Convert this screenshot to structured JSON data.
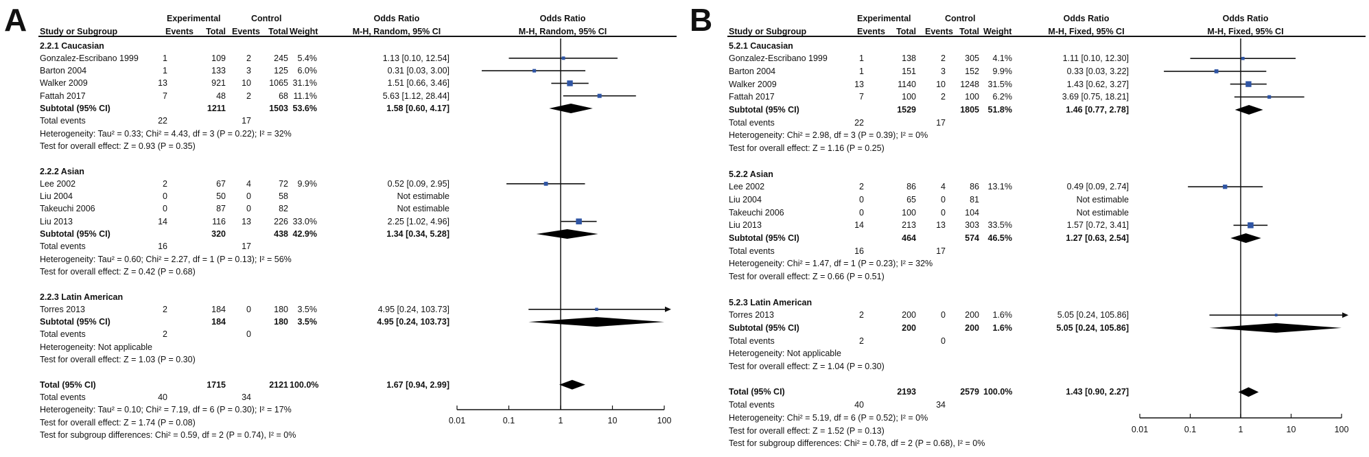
{
  "chart_data": [
    {
      "type": "forest",
      "panel_label": "A",
      "headers": {
        "group_experimental": "Experimental",
        "group_control": "Control",
        "study": "Study or Subgroup",
        "events": "Events",
        "total": "Total",
        "weight": "Weight",
        "or_title": "Odds Ratio",
        "or_method": "M-H, Random, 95% CI",
        "plot_title": "Odds Ratio",
        "plot_method": "M-H, Random, 95% CI"
      },
      "axis": {
        "scale": "log",
        "min": 0.01,
        "max": 100,
        "ticks": [
          "0.01",
          "0.1",
          "1",
          "10",
          "100"
        ],
        "null_line": 1
      },
      "rows": [
        {
          "kind": "subhead",
          "label": "2.2.1 Caucasian"
        },
        {
          "kind": "study",
          "label": "Gonzalez-Escribano 1999",
          "ee": "1",
          "et": "109",
          "ce": "2",
          "ct": "245",
          "w": "5.4%",
          "ci": "1.13 [0.10, 12.54]",
          "or": 1.13,
          "lo": 0.1,
          "hi": 12.54,
          "wt": 5.4
        },
        {
          "kind": "study",
          "label": "Barton 2004",
          "ee": "1",
          "et": "133",
          "ce": "3",
          "ct": "125",
          "w": "6.0%",
          "ci": "0.31 [0.03, 3.00]",
          "or": 0.31,
          "lo": 0.03,
          "hi": 3.0,
          "wt": 6.0
        },
        {
          "kind": "study",
          "label": "Walker 2009",
          "ee": "13",
          "et": "921",
          "ce": "10",
          "ct": "1065",
          "w": "31.1%",
          "ci": "1.51 [0.66, 3.46]",
          "or": 1.51,
          "lo": 0.66,
          "hi": 3.46,
          "wt": 31.1
        },
        {
          "kind": "study",
          "label": "Fattah 2017",
          "ee": "7",
          "et": "48",
          "ce": "2",
          "ct": "68",
          "w": "11.1%",
          "ci": "5.63 [1.12, 28.44]",
          "or": 5.63,
          "lo": 1.12,
          "hi": 28.44,
          "wt": 11.1
        },
        {
          "kind": "subtotal",
          "label": "Subtotal (95% CI)",
          "et": "1211",
          "ct": "1503",
          "w": "53.6%",
          "ci": "1.58 [0.60, 4.17]",
          "or": 1.58,
          "lo": 0.6,
          "hi": 4.17
        },
        {
          "kind": "events",
          "label": "Total events",
          "ee": "22",
          "ce": "17"
        },
        {
          "kind": "text",
          "label": "Heterogeneity: Tau² = 0.33; Chi² = 4.43, df = 3 (P = 0.22); I² = 32%"
        },
        {
          "kind": "text",
          "label": "Test for overall effect: Z = 0.93 (P = 0.35)"
        },
        {
          "kind": "blank"
        },
        {
          "kind": "subhead",
          "label": "2.2.2 Asian"
        },
        {
          "kind": "study",
          "label": "Lee 2002",
          "ee": "2",
          "et": "67",
          "ce": "4",
          "ct": "72",
          "w": "9.9%",
          "ci": "0.52 [0.09, 2.95]",
          "or": 0.52,
          "lo": 0.09,
          "hi": 2.95,
          "wt": 9.9
        },
        {
          "kind": "study",
          "label": "Liu 2004",
          "ee": "0",
          "et": "50",
          "ce": "0",
          "ct": "58",
          "w": "",
          "ci": "Not estimable"
        },
        {
          "kind": "study",
          "label": "Takeuchi 2006",
          "ee": "0",
          "et": "87",
          "ce": "0",
          "ct": "82",
          "w": "",
          "ci": "Not estimable"
        },
        {
          "kind": "study",
          "label": "Liu 2013",
          "ee": "14",
          "et": "116",
          "ce": "13",
          "ct": "226",
          "w": "33.0%",
          "ci": "2.25 [1.02, 4.96]",
          "or": 2.25,
          "lo": 1.02,
          "hi": 4.96,
          "wt": 33.0
        },
        {
          "kind": "subtotal",
          "label": "Subtotal (95% CI)",
          "et": "320",
          "ct": "438",
          "w": "42.9%",
          "ci": "1.34 [0.34, 5.28]",
          "or": 1.34,
          "lo": 0.34,
          "hi": 5.28
        },
        {
          "kind": "events",
          "label": "Total events",
          "ee": "16",
          "ce": "17"
        },
        {
          "kind": "text",
          "label": "Heterogeneity: Tau² = 0.60; Chi² = 2.27, df = 1 (P = 0.13); I² = 56%"
        },
        {
          "kind": "text",
          "label": "Test for overall effect: Z = 0.42 (P = 0.68)"
        },
        {
          "kind": "blank"
        },
        {
          "kind": "subhead",
          "label": "2.2.3 Latin American"
        },
        {
          "kind": "study",
          "label": "Torres 2013",
          "ee": "2",
          "et": "184",
          "ce": "0",
          "ct": "180",
          "w": "3.5%",
          "ci": "4.95 [0.24, 103.73]",
          "or": 4.95,
          "lo": 0.24,
          "hi": 103.73,
          "wt": 3.5
        },
        {
          "kind": "subtotal",
          "label": "Subtotal (95% CI)",
          "et": "184",
          "ct": "180",
          "w": "3.5%",
          "ci": "4.95 [0.24, 103.73]",
          "or": 4.95,
          "lo": 0.24,
          "hi": 103.73
        },
        {
          "kind": "events",
          "label": "Total events",
          "ee": "2",
          "ce": "0"
        },
        {
          "kind": "text",
          "label": "Heterogeneity: Not applicable"
        },
        {
          "kind": "text",
          "label": "Test for overall effect: Z = 1.03 (P = 0.30)"
        },
        {
          "kind": "blank"
        },
        {
          "kind": "subtotal",
          "label": "Total (95% CI)",
          "et": "1715",
          "ct": "2121",
          "w": "100.0%",
          "ci": "1.67 [0.94, 2.99]",
          "or": 1.67,
          "lo": 0.94,
          "hi": 2.99
        },
        {
          "kind": "events",
          "label": "Total events",
          "ee": "40",
          "ce": "34"
        },
        {
          "kind": "text",
          "label": "Heterogeneity: Tau² = 0.10; Chi² = 7.19, df = 6 (P = 0.30); I² = 17%"
        },
        {
          "kind": "text",
          "label": "Test for overall effect: Z = 1.74 (P = 0.08)"
        },
        {
          "kind": "text",
          "label": "Test for subgroup differences: Chi² = 0.59, df = 2 (P = 0.74), I² = 0%"
        }
      ]
    },
    {
      "type": "forest",
      "panel_label": "B",
      "headers": {
        "group_experimental": "Experimental",
        "group_control": "Control",
        "study": "Study or Subgroup",
        "events": "Events",
        "total": "Total",
        "weight": "Weight",
        "or_title": "Odds Ratio",
        "or_method": "M-H, Fixed, 95% CI",
        "plot_title": "Odds Ratio",
        "plot_method": "M-H, Fixed, 95% CI"
      },
      "axis": {
        "scale": "log",
        "min": 0.01,
        "max": 100,
        "ticks": [
          "0.01",
          "0.1",
          "1",
          "10",
          "100"
        ],
        "null_line": 1
      },
      "rows": [
        {
          "kind": "subhead",
          "label": "5.2.1 Caucasian"
        },
        {
          "kind": "study",
          "label": "Gonzalez-Escribano 1999",
          "ee": "1",
          "et": "138",
          "ce": "2",
          "ct": "305",
          "w": "4.1%",
          "ci": "1.11 [0.10, 12.30]",
          "or": 1.11,
          "lo": 0.1,
          "hi": 12.3,
          "wt": 4.1
        },
        {
          "kind": "study",
          "label": "Barton 2004",
          "ee": "1",
          "et": "151",
          "ce": "3",
          "ct": "152",
          "w": "9.9%",
          "ci": "0.33 [0.03, 3.22]",
          "or": 0.33,
          "lo": 0.03,
          "hi": 3.22,
          "wt": 9.9
        },
        {
          "kind": "study",
          "label": "Walker 2009",
          "ee": "13",
          "et": "1140",
          "ce": "10",
          "ct": "1248",
          "w": "31.5%",
          "ci": "1.43 [0.62, 3.27]",
          "or": 1.43,
          "lo": 0.62,
          "hi": 3.27,
          "wt": 31.5
        },
        {
          "kind": "study",
          "label": "Fattah 2017",
          "ee": "7",
          "et": "100",
          "ce": "2",
          "ct": "100",
          "w": "6.2%",
          "ci": "3.69 [0.75, 18.21]",
          "or": 3.69,
          "lo": 0.75,
          "hi": 18.21,
          "wt": 6.2
        },
        {
          "kind": "subtotal",
          "label": "Subtotal (95% CI)",
          "et": "1529",
          "ct": "1805",
          "w": "51.8%",
          "ci": "1.46 [0.77, 2.78]",
          "or": 1.46,
          "lo": 0.77,
          "hi": 2.78
        },
        {
          "kind": "events",
          "label": "Total events",
          "ee": "22",
          "ce": "17"
        },
        {
          "kind": "text",
          "label": "Heterogeneity: Chi² = 2.98, df = 3 (P = 0.39); I² = 0%"
        },
        {
          "kind": "text",
          "label": "Test for overall effect: Z = 1.16 (P = 0.25)"
        },
        {
          "kind": "blank"
        },
        {
          "kind": "subhead",
          "label": "5.2.2 Asian"
        },
        {
          "kind": "study",
          "label": "Lee 2002",
          "ee": "2",
          "et": "86",
          "ce": "4",
          "ct": "86",
          "w": "13.1%",
          "ci": "0.49 [0.09, 2.74]",
          "or": 0.49,
          "lo": 0.09,
          "hi": 2.74,
          "wt": 13.1
        },
        {
          "kind": "study",
          "label": "Liu 2004",
          "ee": "0",
          "et": "65",
          "ce": "0",
          "ct": "81",
          "w": "",
          "ci": "Not estimable"
        },
        {
          "kind": "study",
          "label": "Takeuchi 2006",
          "ee": "0",
          "et": "100",
          "ce": "0",
          "ct": "104",
          "w": "",
          "ci": "Not estimable"
        },
        {
          "kind": "study",
          "label": "Liu 2013",
          "ee": "14",
          "et": "213",
          "ce": "13",
          "ct": "303",
          "w": "33.5%",
          "ci": "1.57 [0.72, 3.41]",
          "or": 1.57,
          "lo": 0.72,
          "hi": 3.41,
          "wt": 33.5
        },
        {
          "kind": "subtotal",
          "label": "Subtotal (95% CI)",
          "et": "464",
          "ct": "574",
          "w": "46.5%",
          "ci": "1.27 [0.63, 2.54]",
          "or": 1.27,
          "lo": 0.63,
          "hi": 2.54
        },
        {
          "kind": "events",
          "label": "Total events",
          "ee": "16",
          "ce": "17"
        },
        {
          "kind": "text",
          "label": "Heterogeneity: Chi² = 1.47, df = 1 (P = 0.23); I² = 32%"
        },
        {
          "kind": "text",
          "label": "Test for overall effect: Z = 0.66 (P = 0.51)"
        },
        {
          "kind": "blank"
        },
        {
          "kind": "subhead",
          "label": "5.2.3 Latin American"
        },
        {
          "kind": "study",
          "label": "Torres 2013",
          "ee": "2",
          "et": "200",
          "ce": "0",
          "ct": "200",
          "w": "1.6%",
          "ci": "5.05 [0.24, 105.86]",
          "or": 5.05,
          "lo": 0.24,
          "hi": 105.86,
          "wt": 1.6
        },
        {
          "kind": "subtotal",
          "label": "Subtotal (95% CI)",
          "et": "200",
          "ct": "200",
          "w": "1.6%",
          "ci": "5.05 [0.24, 105.86]",
          "or": 5.05,
          "lo": 0.24,
          "hi": 105.86
        },
        {
          "kind": "events",
          "label": "Total events",
          "ee": "2",
          "ce": "0"
        },
        {
          "kind": "text",
          "label": "Heterogeneity: Not applicable"
        },
        {
          "kind": "text",
          "label": "Test for overall effect: Z = 1.04 (P = 0.30)"
        },
        {
          "kind": "blank"
        },
        {
          "kind": "subtotal",
          "label": "Total (95% CI)",
          "et": "2193",
          "ct": "2579",
          "w": "100.0%",
          "ci": "1.43 [0.90, 2.27]",
          "or": 1.43,
          "lo": 0.9,
          "hi": 2.27
        },
        {
          "kind": "events",
          "label": "Total events",
          "ee": "40",
          "ce": "34"
        },
        {
          "kind": "text",
          "label": "Heterogeneity: Chi² = 5.19, df = 6 (P = 0.52); I² = 0%"
        },
        {
          "kind": "text",
          "label": "Test for overall effect: Z = 1.52 (P = 0.13)"
        },
        {
          "kind": "text",
          "label": "Test for subgroup differences: Chi² = 0.78, df = 2 (P = 0.68), I² = 0%"
        }
      ]
    }
  ],
  "colors": {
    "square": "#2f55a4",
    "diamond": "#000000",
    "text": "#111111"
  }
}
